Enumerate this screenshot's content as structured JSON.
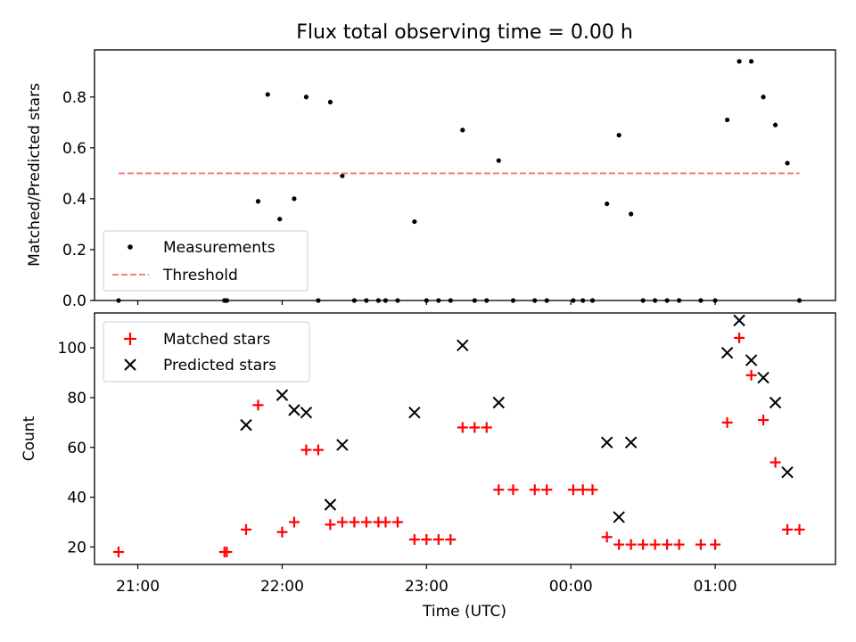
{
  "chart_data": [
    {
      "type": "scatter",
      "title": "Flux total observing time = 0.00 h",
      "xlabel": "",
      "ylabel": "Matched/Predicted stars",
      "ylim": [
        0.0,
        0.985
      ],
      "yticks": [
        0.0,
        0.2,
        0.4,
        0.6,
        0.8
      ],
      "ytick_labels": [
        "0.0",
        "0.2",
        "0.4",
        "0.6",
        "0.8"
      ],
      "xlim": [
        "20:42",
        "01:50"
      ],
      "xticks": [
        "21:00",
        "22:00",
        "23:00",
        "00:00",
        "01:00"
      ],
      "legend_position": "lower-left",
      "series": [
        {
          "name": "Measurements",
          "marker": "dot",
          "color": "#000000",
          "points": [
            [
              "20:52",
              0.0
            ],
            [
              "21:36",
              0.0
            ],
            [
              "21:37",
              0.0
            ],
            [
              "21:50",
              0.39
            ],
            [
              "21:54",
              0.81
            ],
            [
              "21:59",
              0.32
            ],
            [
              "22:05",
              0.4
            ],
            [
              "22:10",
              0.8
            ],
            [
              "22:15",
              0.0
            ],
            [
              "22:20",
              0.78
            ],
            [
              "22:25",
              0.49
            ],
            [
              "22:30",
              0.0
            ],
            [
              "22:35",
              0.0
            ],
            [
              "22:40",
              0.0
            ],
            [
              "22:43",
              0.0
            ],
            [
              "22:48",
              0.0
            ],
            [
              "22:55",
              0.31
            ],
            [
              "23:00",
              0.0
            ],
            [
              "23:05",
              0.0
            ],
            [
              "23:10",
              0.0
            ],
            [
              "23:15",
              0.67
            ],
            [
              "23:20",
              0.0
            ],
            [
              "23:25",
              0.0
            ],
            [
              "23:30",
              0.55
            ],
            [
              "23:36",
              0.0
            ],
            [
              "23:45",
              0.0
            ],
            [
              "23:50",
              0.0
            ],
            [
              "00:01",
              0.0
            ],
            [
              "00:05",
              0.0
            ],
            [
              "00:09",
              0.0
            ],
            [
              "00:15",
              0.38
            ],
            [
              "00:20",
              0.65
            ],
            [
              "00:25",
              0.34
            ],
            [
              "00:30",
              0.0
            ],
            [
              "00:35",
              0.0
            ],
            [
              "00:40",
              0.0
            ],
            [
              "00:45",
              0.0
            ],
            [
              "00:54",
              0.0
            ],
            [
              "01:00",
              0.0
            ],
            [
              "01:05",
              0.71
            ],
            [
              "01:10",
              0.94
            ],
            [
              "01:15",
              0.94
            ],
            [
              "01:20",
              0.8
            ],
            [
              "01:25",
              0.69
            ],
            [
              "01:30",
              0.54
            ],
            [
              "01:35",
              0.0
            ]
          ]
        },
        {
          "name": "Threshold",
          "marker": "dashed-line",
          "color": "#f08080",
          "points": [
            [
              "20:52",
              0.5
            ],
            [
              "01:35",
              0.5
            ]
          ]
        }
      ]
    },
    {
      "type": "scatter",
      "title": "",
      "xlabel": "Time (UTC)",
      "ylabel": "Count",
      "ylim": [
        13,
        114
      ],
      "yticks": [
        20,
        40,
        60,
        80,
        100
      ],
      "ytick_labels": [
        "20",
        "40",
        "60",
        "80",
        "100"
      ],
      "xlim": [
        "20:42",
        "01:50"
      ],
      "xticks": [
        "21:00",
        "22:00",
        "23:00",
        "00:00",
        "01:00"
      ],
      "xtick_labels": [
        "21:00",
        "22:00",
        "23:00",
        "00:00",
        "01:00"
      ],
      "legend_position": "upper-left",
      "series": [
        {
          "name": "Matched stars",
          "marker": "plus",
          "color": "#ff0000",
          "points": [
            [
              "20:52",
              18
            ],
            [
              "21:36",
              18
            ],
            [
              "21:37",
              18
            ],
            [
              "21:45",
              27
            ],
            [
              "21:50",
              77
            ],
            [
              "22:00",
              26
            ],
            [
              "22:05",
              30
            ],
            [
              "22:10",
              59
            ],
            [
              "22:15",
              59
            ],
            [
              "22:20",
              29
            ],
            [
              "22:25",
              30
            ],
            [
              "22:30",
              30
            ],
            [
              "22:35",
              30
            ],
            [
              "22:40",
              30
            ],
            [
              "22:43",
              30
            ],
            [
              "22:48",
              30
            ],
            [
              "22:55",
              23
            ],
            [
              "23:00",
              23
            ],
            [
              "23:05",
              23
            ],
            [
              "23:10",
              23
            ],
            [
              "23:15",
              68
            ],
            [
              "23:20",
              68
            ],
            [
              "23:25",
              68
            ],
            [
              "23:30",
              43
            ],
            [
              "23:36",
              43
            ],
            [
              "23:45",
              43
            ],
            [
              "23:50",
              43
            ],
            [
              "00:01",
              43
            ],
            [
              "00:05",
              43
            ],
            [
              "00:09",
              43
            ],
            [
              "00:15",
              24
            ],
            [
              "00:20",
              21
            ],
            [
              "00:25",
              21
            ],
            [
              "00:30",
              21
            ],
            [
              "00:35",
              21
            ],
            [
              "00:40",
              21
            ],
            [
              "00:45",
              21
            ],
            [
              "00:54",
              21
            ],
            [
              "01:00",
              21
            ],
            [
              "01:05",
              70
            ],
            [
              "01:10",
              104
            ],
            [
              "01:15",
              89
            ],
            [
              "01:20",
              71
            ],
            [
              "01:25",
              54
            ],
            [
              "01:30",
              27
            ],
            [
              "01:35",
              27
            ]
          ]
        },
        {
          "name": "Predicted stars",
          "marker": "x",
          "color": "#000000",
          "points": [
            [
              "21:45",
              69
            ],
            [
              "22:00",
              81
            ],
            [
              "22:05",
              75
            ],
            [
              "22:10",
              74
            ],
            [
              "22:20",
              37
            ],
            [
              "22:25",
              61
            ],
            [
              "22:55",
              74
            ],
            [
              "23:15",
              101
            ],
            [
              "23:30",
              78
            ],
            [
              "00:15",
              62
            ],
            [
              "00:20",
              32
            ],
            [
              "00:25",
              62
            ],
            [
              "01:05",
              98
            ],
            [
              "01:10",
              111
            ],
            [
              "01:15",
              95
            ],
            [
              "01:20",
              88
            ],
            [
              "01:25",
              78
            ],
            [
              "01:30",
              50
            ]
          ]
        }
      ]
    }
  ]
}
